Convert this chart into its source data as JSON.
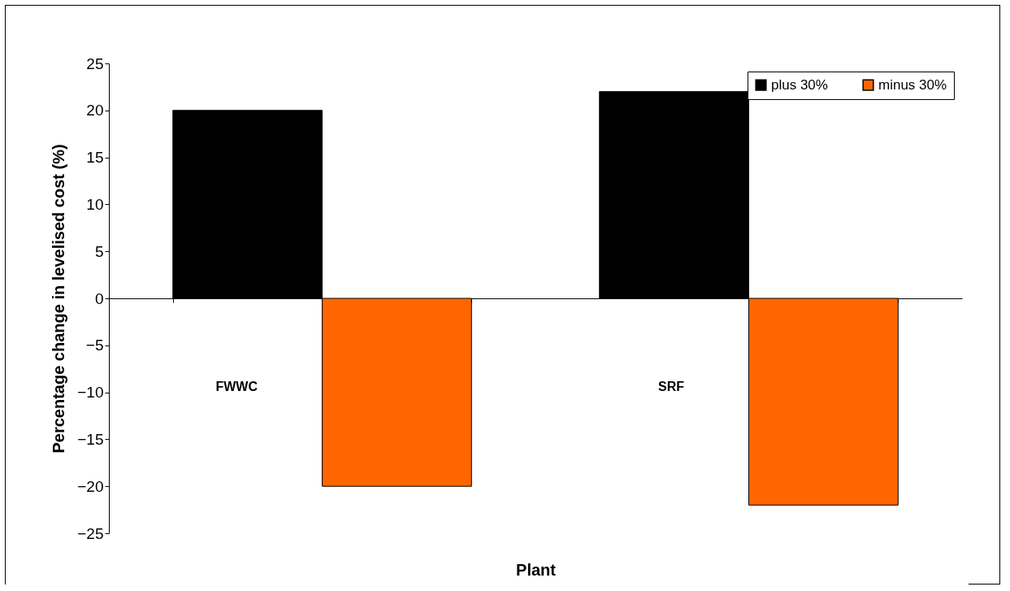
{
  "chart_data": {
    "type": "bar",
    "xlabel": "Plant",
    "ylabel": "Percentage change in levelised cost (%)",
    "categories": [
      "FWWC",
      "SRF"
    ],
    "series": [
      {
        "name": "plus 30%",
        "color": "#000000",
        "values": [
          20,
          22
        ]
      },
      {
        "name": "minus 30%",
        "color": "#ff6600",
        "values": [
          -20,
          -22
        ]
      }
    ],
    "ylim": [
      -25,
      25
    ],
    "yticks": [
      -25,
      -20,
      -15,
      -10,
      -5,
      0,
      5,
      10,
      15,
      20,
      25
    ],
    "legend": "top right"
  }
}
